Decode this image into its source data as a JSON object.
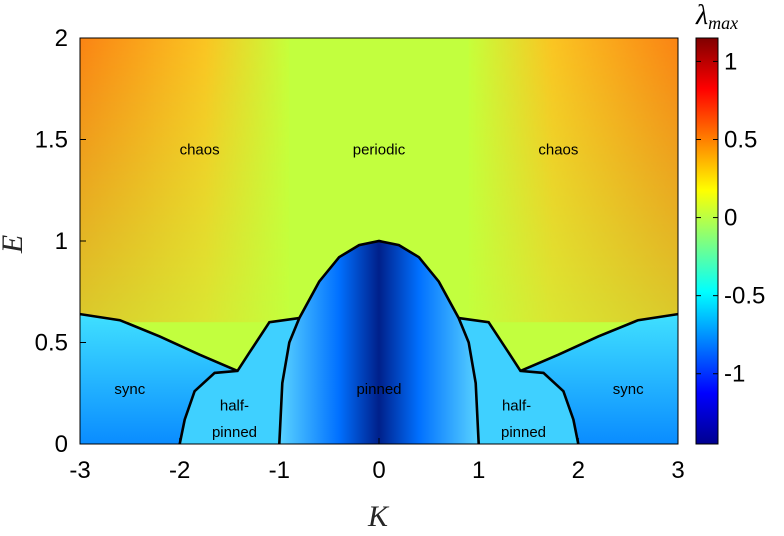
{
  "chart_data": {
    "type": "heatmap",
    "title": "",
    "xlabel": "K",
    "ylabel": "E",
    "xlim": [
      -3,
      3
    ],
    "ylim": [
      0,
      2
    ],
    "x_ticks": [
      "-3",
      "-2",
      "-1",
      "0",
      "1",
      "2",
      "3"
    ],
    "y_ticks": [
      "0",
      "0.5",
      "1",
      "1.5",
      "2"
    ],
    "colorbar": {
      "label_main": "λ",
      "label_sub": "max",
      "range": [
        -1.45,
        1.15
      ],
      "ticks": [
        "1",
        "0.5",
        "0",
        "-0.5",
        "-1"
      ],
      "tick_values": [
        1,
        0.5,
        0,
        -0.5,
        -1
      ],
      "colormap": "jet"
    },
    "regions": [
      {
        "label": "chaos",
        "K": -1.8,
        "E": 1.45
      },
      {
        "label": "periodic",
        "K": 0,
        "E": 1.45
      },
      {
        "label": "chaos",
        "K": 1.8,
        "E": 1.45
      },
      {
        "label": "sync",
        "K": -2.5,
        "E": 0.27
      },
      {
        "label": "half-",
        "K": -1.45,
        "E": 0.19
      },
      {
        "label": "pinned",
        "K": -1.45,
        "E": 0.06
      },
      {
        "label": "pinned",
        "K": 0,
        "E": 0.27,
        "color": "#ffffff"
      },
      {
        "label": "half-",
        "K": 1.38,
        "E": 0.19
      },
      {
        "label": "pinned",
        "K": 1.45,
        "E": 0.06
      },
      {
        "label": "sync",
        "K": 2.5,
        "E": 0.27
      }
    ],
    "boundaries": [
      {
        "name": "pinned",
        "points": [
          [
            -1,
            0
          ],
          [
            -0.97,
            0.3
          ],
          [
            -0.9,
            0.5
          ],
          [
            -0.8,
            0.62
          ],
          [
            -0.6,
            0.8
          ],
          [
            -0.4,
            0.92
          ],
          [
            -0.2,
            0.98
          ],
          [
            0,
            1.0
          ],
          [
            0.2,
            0.98
          ],
          [
            0.4,
            0.92
          ],
          [
            0.6,
            0.8
          ],
          [
            0.8,
            0.62
          ],
          [
            0.9,
            0.5
          ],
          [
            0.97,
            0.3
          ],
          [
            1,
            0
          ]
        ]
      },
      {
        "name": "half-pinned-left",
        "points": [
          [
            -2,
            0
          ],
          [
            -1.95,
            0.12
          ],
          [
            -1.85,
            0.26
          ],
          [
            -1.65,
            0.35
          ],
          [
            -1.42,
            0.36
          ],
          [
            -1.3,
            0.45
          ],
          [
            -1.1,
            0.6
          ],
          [
            -0.8,
            0.62
          ]
        ]
      },
      {
        "name": "half-pinned-right",
        "points": [
          [
            2,
            0
          ],
          [
            1.95,
            0.12
          ],
          [
            1.85,
            0.26
          ],
          [
            1.65,
            0.35
          ],
          [
            1.42,
            0.36
          ],
          [
            1.3,
            0.45
          ],
          [
            1.1,
            0.6
          ],
          [
            0.8,
            0.62
          ]
        ]
      },
      {
        "name": "sync-left",
        "points": [
          [
            -3,
            0.64
          ],
          [
            -2.6,
            0.61
          ],
          [
            -2.2,
            0.53
          ],
          [
            -1.8,
            0.44
          ],
          [
            -1.42,
            0.36
          ]
        ]
      },
      {
        "name": "sync-right",
        "points": [
          [
            3,
            0.64
          ],
          [
            2.6,
            0.61
          ],
          [
            2.2,
            0.53
          ],
          [
            1.8,
            0.44
          ],
          [
            1.42,
            0.36
          ]
        ]
      }
    ],
    "colors": {
      "curve": "#000000",
      "axis": "#000000"
    }
  }
}
